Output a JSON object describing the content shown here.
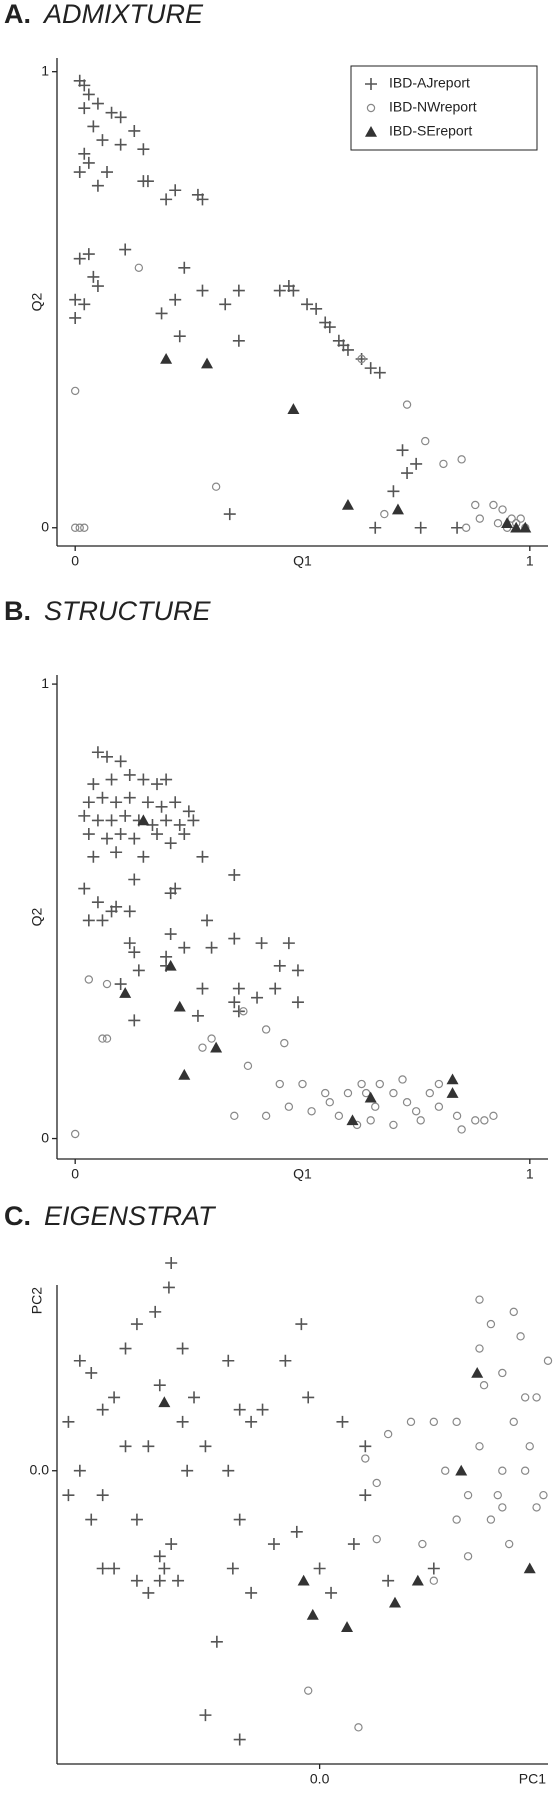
{
  "chart_data": [
    {
      "type": "scatter",
      "panel_label": "A.",
      "title": "ADMIXTURE",
      "x_label": "Q1",
      "y_label": "Q2",
      "xlim": [
        -0.04,
        1.04
      ],
      "ylim": [
        -0.04,
        1.03
      ],
      "xticks": [
        0,
        1
      ],
      "yticks": [
        0,
        1
      ],
      "legend": "upper right",
      "series": [
        {
          "name": "IBD-AJreport",
          "marker": "plus",
          "color": "#555555",
          "x": [
            0.02,
            0.03,
            0.01,
            0.05,
            0.08,
            0.1,
            0.13,
            0.02,
            0.04,
            0.06,
            0.1,
            0.15,
            0.16,
            0.2,
            0.22,
            0.27,
            0.28,
            0.02,
            0.01,
            0.05,
            0.15,
            0.03,
            0.04,
            0.01,
            0.05,
            0.11,
            0.22,
            0.24,
            0.28,
            0.36,
            0.19,
            0.33,
            0.0,
            0.0,
            0.02,
            0.23,
            0.36,
            0.47,
            0.45,
            0.48,
            0.51,
            0.53,
            0.55,
            0.56,
            0.58,
            0.59,
            0.6,
            0.63,
            0.65,
            0.67,
            0.72,
            0.73,
            0.7,
            0.66,
            0.76,
            0.84,
            0.75,
            0.34,
            0.03,
            0.07
          ],
          "y": [
            0.97,
            0.95,
            0.98,
            0.93,
            0.91,
            0.9,
            0.87,
            0.92,
            0.88,
            0.85,
            0.84,
            0.83,
            0.76,
            0.72,
            0.74,
            0.73,
            0.72,
            0.82,
            0.78,
            0.75,
            0.76,
            0.6,
            0.55,
            0.59,
            0.53,
            0.61,
            0.5,
            0.57,
            0.52,
            0.52,
            0.47,
            0.49,
            0.5,
            0.46,
            0.49,
            0.42,
            0.41,
            0.53,
            0.52,
            0.52,
            0.49,
            0.48,
            0.45,
            0.44,
            0.41,
            0.4,
            0.39,
            0.37,
            0.35,
            0.34,
            0.17,
            0.12,
            0.08,
            0.0,
            0.0,
            0.0,
            0.14,
            0.03,
            0.8,
            0.78
          ]
        },
        {
          "name": "IBD-NWreport",
          "marker": "circle",
          "color": "#888888",
          "x": [
            0.14,
            0.0,
            0.0,
            0.01,
            0.02,
            0.31,
            0.73,
            0.77,
            0.81,
            0.85,
            0.68,
            0.86,
            0.89,
            0.88,
            0.92,
            0.94,
            0.96,
            0.97,
            0.98,
            0.99,
            0.95,
            0.93,
            0.63
          ],
          "y": [
            0.57,
            0.3,
            0.0,
            0.0,
            0.0,
            0.09,
            0.27,
            0.19,
            0.14,
            0.15,
            0.03,
            0.0,
            0.02,
            0.05,
            0.05,
            0.04,
            0.02,
            0.01,
            0.02,
            0.0,
            0.0,
            0.01,
            0.37
          ]
        },
        {
          "name": "IBD-SEreport",
          "marker": "triangle",
          "color": "#333333",
          "x": [
            0.2,
            0.29,
            0.48,
            0.6,
            0.71,
            0.95,
            0.99,
            0.97
          ],
          "y": [
            0.37,
            0.36,
            0.26,
            0.05,
            0.04,
            0.01,
            0.0,
            0.0
          ]
        }
      ]
    },
    {
      "type": "scatter",
      "panel_label": "B.",
      "title": "STRUCTURE",
      "x_label": "Q1",
      "y_label": "Q2",
      "xlim": [
        -0.04,
        1.04
      ],
      "ylim": [
        -0.045,
        1.02
      ],
      "xticks": [
        0,
        1
      ],
      "yticks": [
        0,
        1
      ],
      "series": [
        {
          "marker": "plus",
          "color": "#555555",
          "x": [
            0.05,
            0.07,
            0.1,
            0.04,
            0.08,
            0.12,
            0.15,
            0.18,
            0.2,
            0.03,
            0.06,
            0.09,
            0.12,
            0.16,
            0.19,
            0.22,
            0.25,
            0.02,
            0.05,
            0.08,
            0.11,
            0.14,
            0.17,
            0.2,
            0.23,
            0.26,
            0.03,
            0.07,
            0.1,
            0.13,
            0.18,
            0.21,
            0.24,
            0.04,
            0.09,
            0.15,
            0.28,
            0.02,
            0.05,
            0.09,
            0.12,
            0.13,
            0.21,
            0.22,
            0.03,
            0.06,
            0.08,
            0.29,
            0.35,
            0.21,
            0.2,
            0.24,
            0.3,
            0.35,
            0.41,
            0.47,
            0.45,
            0.49,
            0.44,
            0.49,
            0.12,
            0.13,
            0.2,
            0.28,
            0.36,
            0.4,
            0.35,
            0.27,
            0.14,
            0.1,
            0.13,
            0.36
          ],
          "y": [
            0.85,
            0.84,
            0.83,
            0.78,
            0.79,
            0.8,
            0.79,
            0.78,
            0.79,
            0.74,
            0.75,
            0.74,
            0.75,
            0.74,
            0.73,
            0.74,
            0.72,
            0.71,
            0.7,
            0.7,
            0.71,
            0.7,
            0.69,
            0.7,
            0.69,
            0.7,
            0.67,
            0.66,
            0.67,
            0.66,
            0.67,
            0.65,
            0.67,
            0.62,
            0.63,
            0.62,
            0.62,
            0.55,
            0.52,
            0.51,
            0.5,
            0.57,
            0.54,
            0.55,
            0.48,
            0.48,
            0.5,
            0.48,
            0.58,
            0.45,
            0.4,
            0.42,
            0.42,
            0.44,
            0.43,
            0.43,
            0.38,
            0.37,
            0.33,
            0.3,
            0.43,
            0.41,
            0.38,
            0.33,
            0.33,
            0.31,
            0.3,
            0.27,
            0.37,
            0.34,
            0.26,
            0.28
          ]
        },
        {
          "marker": "circle",
          "color": "#888888",
          "x": [
            0.07,
            0.06,
            0.07,
            0.0,
            0.03,
            0.3,
            0.28,
            0.37,
            0.42,
            0.46,
            0.38,
            0.45,
            0.5,
            0.55,
            0.56,
            0.6,
            0.63,
            0.64,
            0.66,
            0.7,
            0.73,
            0.75,
            0.78,
            0.8,
            0.84,
            0.88,
            0.92,
            0.58,
            0.62,
            0.7,
            0.76,
            0.85,
            0.9,
            0.52,
            0.47,
            0.42,
            0.35,
            0.67,
            0.72,
            0.8,
            0.65
          ],
          "y": [
            0.34,
            0.22,
            0.22,
            0.01,
            0.35,
            0.22,
            0.2,
            0.28,
            0.24,
            0.21,
            0.16,
            0.12,
            0.12,
            0.1,
            0.08,
            0.1,
            0.12,
            0.1,
            0.07,
            0.1,
            0.08,
            0.06,
            0.1,
            0.07,
            0.05,
            0.04,
            0.05,
            0.05,
            0.03,
            0.03,
            0.04,
            0.02,
            0.04,
            0.06,
            0.07,
            0.05,
            0.05,
            0.12,
            0.13,
            0.12,
            0.04
          ]
        },
        {
          "marker": "triangle",
          "color": "#333333",
          "x": [
            0.15,
            0.11,
            0.21,
            0.23,
            0.31,
            0.24,
            0.61,
            0.65,
            0.83,
            0.83
          ],
          "y": [
            0.7,
            0.32,
            0.38,
            0.29,
            0.2,
            0.14,
            0.04,
            0.09,
            0.1,
            0.13
          ]
        }
      ]
    },
    {
      "type": "scatter",
      "panel_label": "C.",
      "title": "EIGENSTRAT",
      "x_label": "PC1",
      "y_label": "PC2",
      "xlim": [
        -0.115,
        0.1
      ],
      "ylim": [
        -0.12,
        0.076
      ],
      "xticks": [
        {
          "value": 0,
          "label": "0.0"
        }
      ],
      "yticks": [
        {
          "value": 0,
          "label": "0.0"
        }
      ],
      "series": [
        {
          "marker": "plus",
          "color": "#555555",
          "x": [
            -0.11,
            -0.105,
            -0.1,
            -0.095,
            -0.09,
            -0.085,
            -0.08,
            -0.075,
            -0.07,
            -0.065,
            -0.06,
            -0.062,
            -0.058,
            -0.1,
            -0.09,
            -0.08,
            -0.075,
            -0.07,
            -0.085,
            -0.095,
            -0.072,
            -0.066,
            -0.068,
            -0.08,
            -0.11,
            -0.105,
            -0.06,
            -0.055,
            -0.05,
            -0.04,
            -0.03,
            -0.025,
            -0.04,
            -0.035,
            -0.02,
            -0.03,
            -0.038,
            -0.01,
            -0.005,
            0.01,
            0.015,
            0.02,
            -0.015,
            -0.008,
            0.0,
            0.005,
            0.03,
            0.05,
            0.02,
            -0.045,
            -0.05,
            -0.035,
            -0.095,
            -0.07,
            -0.065,
            -0.035
          ],
          "y": [
            0.02,
            0.0,
            0.04,
            -0.01,
            0.03,
            0.05,
            -0.02,
            0.01,
            0.035,
            -0.03,
            0.02,
            -0.045,
            0.0,
            -0.02,
            -0.04,
            0.06,
            -0.05,
            -0.035,
            0.01,
            0.025,
            0.065,
            0.075,
            -0.04,
            -0.045,
            -0.01,
            0.045,
            0.05,
            0.03,
            0.01,
            0.0,
            0.02,
            0.025,
            0.045,
            -0.02,
            -0.03,
            -0.05,
            -0.04,
            -0.025,
            0.03,
            0.02,
            -0.03,
            0.01,
            0.045,
            0.06,
            -0.04,
            -0.05,
            -0.045,
            -0.04,
            -0.01,
            -0.07,
            -0.1,
            -0.11,
            -0.04,
            -0.045,
            0.085,
            0.025
          ]
        },
        {
          "marker": "circle",
          "color": "#888888",
          "x": [
            0.07,
            0.075,
            0.08,
            0.085,
            0.09,
            0.06,
            0.065,
            0.07,
            0.075,
            0.08,
            0.085,
            0.09,
            0.095,
            0.1,
            0.095,
            0.07,
            0.06,
            0.055,
            0.05,
            0.045,
            0.08,
            0.088,
            0.092,
            0.072,
            0.04,
            0.03,
            0.025,
            0.02,
            0.025,
            0.05,
            0.065,
            -0.005,
            0.017,
            0.078,
            0.083,
            0.098
          ],
          "y": [
            0.05,
            0.06,
            0.04,
            0.065,
            0.03,
            0.02,
            -0.01,
            0.01,
            -0.02,
            0.0,
            0.02,
            0.0,
            -0.015,
            0.045,
            0.03,
            0.07,
            -0.02,
            0.0,
            0.02,
            -0.03,
            -0.015,
            0.055,
            0.01,
            0.035,
            0.02,
            0.015,
            -0.005,
            0.005,
            -0.028,
            -0.045,
            -0.035,
            -0.09,
            -0.105,
            -0.01,
            -0.03,
            -0.01
          ]
        },
        {
          "marker": "triangle",
          "color": "#333333",
          "x": [
            -0.068,
            -0.007,
            -0.003,
            0.012,
            0.033,
            0.043,
            0.062,
            0.069,
            0.092
          ],
          "y": [
            0.028,
            -0.045,
            -0.059,
            -0.064,
            -0.054,
            -0.045,
            0.0,
            0.04,
            -0.04
          ]
        }
      ]
    }
  ]
}
